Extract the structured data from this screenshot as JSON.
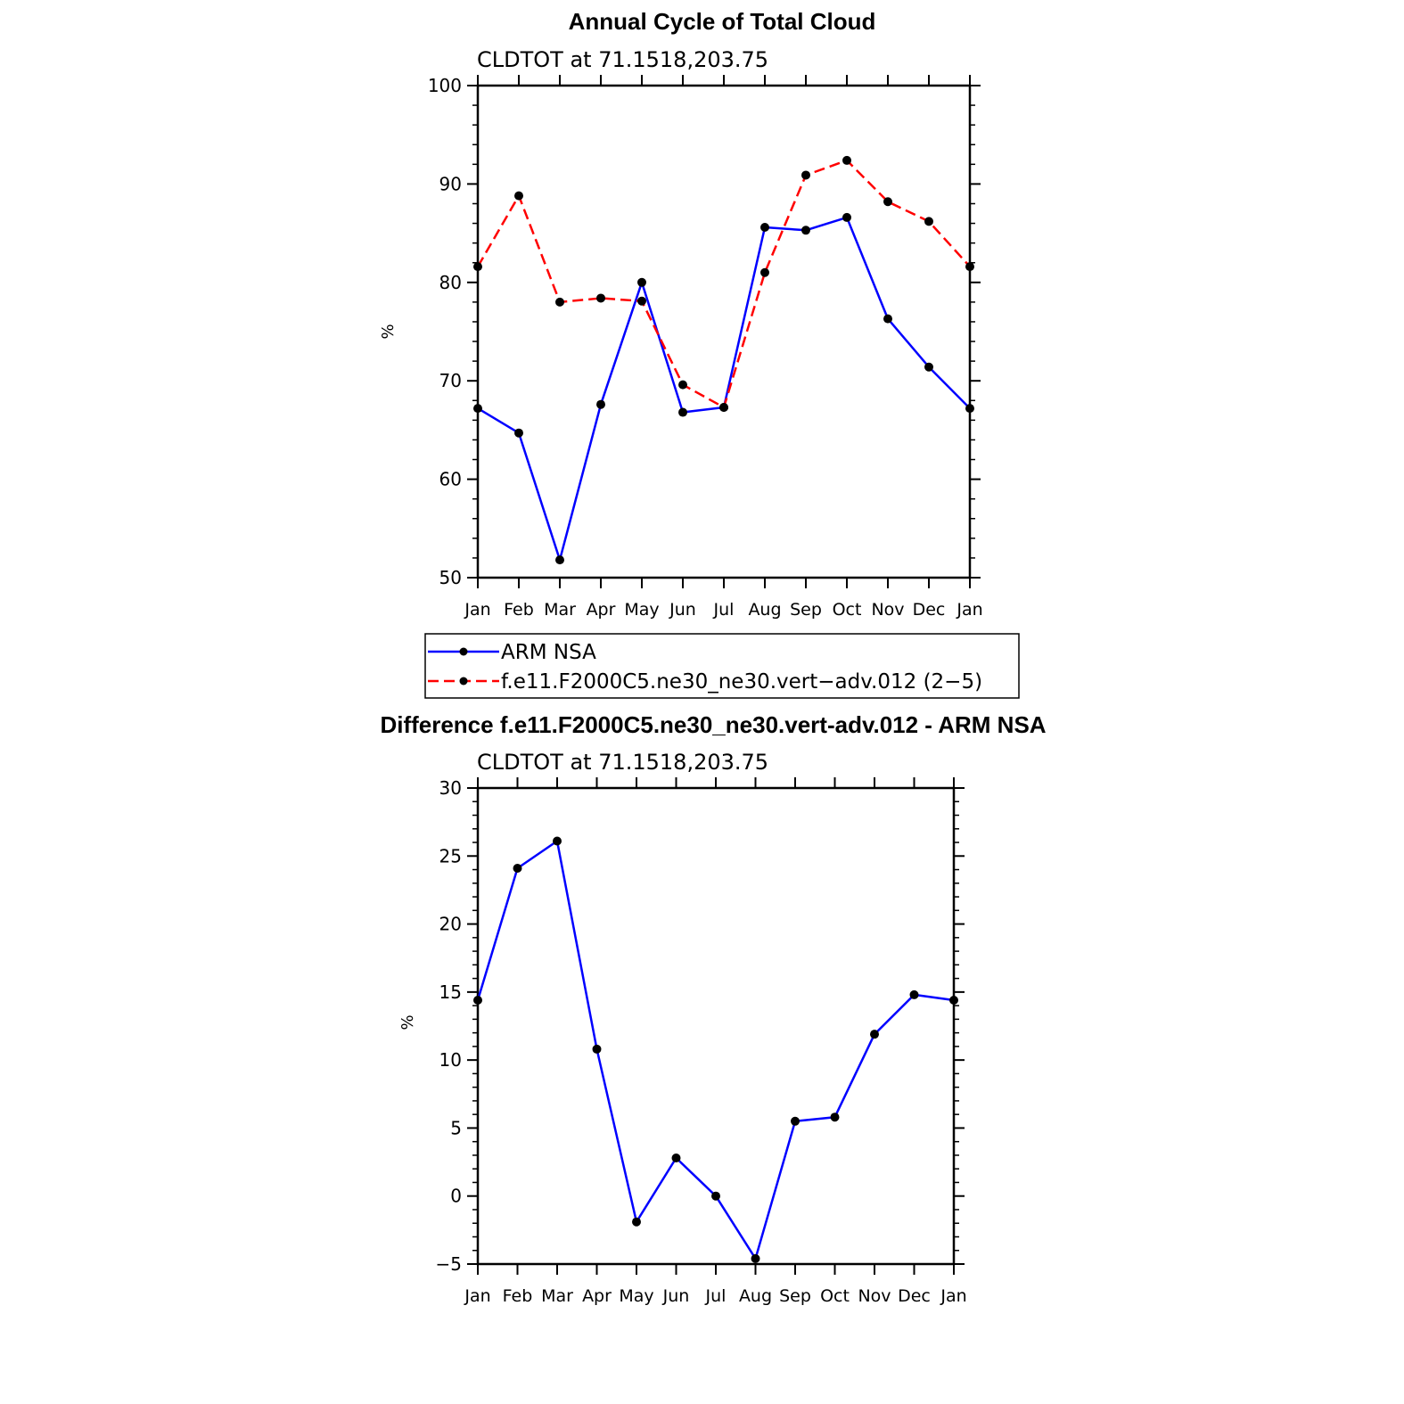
{
  "chart_data": [
    {
      "type": "line",
      "title": "Annual Cycle of Total Cloud",
      "subtitle": "CLDTOT at 71.1518,203.75",
      "ylabel": "%",
      "xlabel": "",
      "ylim": [
        50,
        100
      ],
      "yticks": [
        "50",
        "60",
        "70",
        "80",
        "90",
        "100"
      ],
      "categories": [
        "Jan",
        "Feb",
        "Mar",
        "Apr",
        "May",
        "Jun",
        "Jul",
        "Aug",
        "Sep",
        "Oct",
        "Nov",
        "Dec",
        "Jan"
      ],
      "series": [
        {
          "name": "ARM NSA",
          "color": "#0000ff",
          "dashed": false,
          "values": [
            67.2,
            64.7,
            51.8,
            67.6,
            80.0,
            66.8,
            67.3,
            85.6,
            85.3,
            86.6,
            76.3,
            71.4,
            67.2
          ]
        },
        {
          "name": "f.e11.F2000C5.ne30_ne30.vert−adv.012 (2−5)",
          "color": "#ff0000",
          "dashed": true,
          "values": [
            81.6,
            88.8,
            78.0,
            78.4,
            78.1,
            69.6,
            67.3,
            81.0,
            90.9,
            92.4,
            88.2,
            86.2,
            81.6
          ]
        }
      ]
    },
    {
      "type": "line",
      "title": "Difference f.e11.F2000C5.ne30_ne30.vert-adv.012 - ARM NSA",
      "subtitle": "CLDTOT at 71.1518,203.75",
      "ylabel": "%",
      "xlabel": "",
      "ylim": [
        -5,
        30
      ],
      "yticks": [
        "−5",
        "0",
        "5",
        "10",
        "15",
        "20",
        "25",
        "30"
      ],
      "categories": [
        "Jan",
        "Feb",
        "Mar",
        "Apr",
        "May",
        "Jun",
        "Jul",
        "Aug",
        "Sep",
        "Oct",
        "Nov",
        "Dec",
        "Jan"
      ],
      "series": [
        {
          "name": "Difference",
          "color": "#0000ff",
          "dashed": false,
          "values": [
            14.4,
            24.1,
            26.1,
            10.8,
            -1.9,
            2.8,
            0.0,
            -4.6,
            5.5,
            5.8,
            11.9,
            14.8,
            14.4
          ]
        }
      ]
    }
  ],
  "markers": {
    "color": "#000000"
  }
}
